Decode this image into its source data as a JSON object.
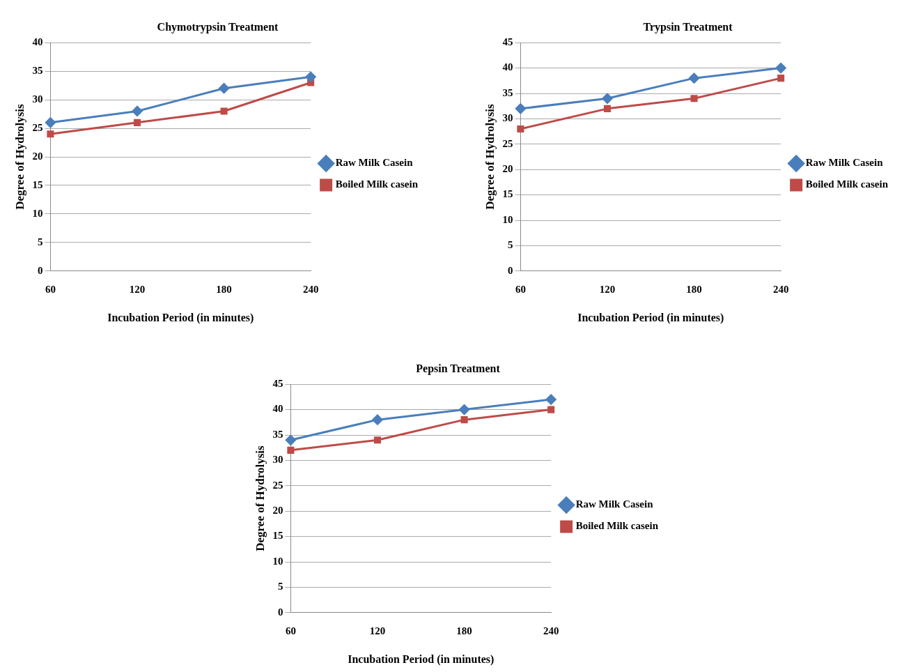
{
  "chart_data": [
    {
      "type": "line",
      "title": "Chymotrypsin Treatment",
      "xlabel": "Incubation Period (in minutes)",
      "ylabel": "Degree of Hydrolysis",
      "categories": [
        "60",
        "120",
        "180",
        "240"
      ],
      "series": [
        {
          "name": "Raw Milk Casein",
          "color": "#4a7ebb",
          "marker": "diamond",
          "values": [
            26,
            28,
            32,
            34
          ]
        },
        {
          "name": "Boiled Milk casein",
          "color": "#be4b48",
          "marker": "square",
          "values": [
            24,
            26,
            28,
            33
          ]
        }
      ],
      "ylim": [
        0,
        40
      ],
      "yticks": [
        0,
        5,
        10,
        15,
        20,
        25,
        30,
        35,
        40
      ],
      "grid": "y",
      "legend": "right",
      "line_style": "solid"
    },
    {
      "type": "line",
      "title": "Trypsin Treatment",
      "xlabel": "Incubation Period (in minutes)",
      "ylabel": "Degree of Hydrolysis",
      "categories": [
        "60",
        "120",
        "180",
        "240"
      ],
      "series": [
        {
          "name": "Raw Milk Casein",
          "color": "#4a7ebb",
          "marker": "diamond",
          "values": [
            32,
            34,
            38,
            40
          ]
        },
        {
          "name": "Boiled Milk casein",
          "color": "#be4b48",
          "marker": "square",
          "values": [
            28,
            32,
            34,
            38
          ]
        }
      ],
      "ylim": [
        0,
        45
      ],
      "yticks": [
        0,
        5,
        10,
        15,
        20,
        25,
        30,
        35,
        40,
        45
      ],
      "grid": "y",
      "legend": "right",
      "line_style": "solid"
    },
    {
      "type": "line",
      "title": "Pepsin Treatment",
      "xlabel": "Incubation Period (in minutes)",
      "ylabel": "Degree of Hydrolysis",
      "categories": [
        "60",
        "120",
        "180",
        "240"
      ],
      "series": [
        {
          "name": "Raw Milk Casein",
          "color": "#4a7ebb",
          "marker": "diamond",
          "values": [
            34,
            38,
            40,
            42
          ]
        },
        {
          "name": "Boiled Milk casein",
          "color": "#be4b48",
          "marker": "square",
          "values": [
            32,
            34,
            38,
            40
          ]
        }
      ],
      "ylim": [
        0,
        45
      ],
      "yticks": [
        0,
        5,
        10,
        15,
        20,
        25,
        30,
        35,
        40,
        45
      ],
      "grid": "y",
      "legend": "right",
      "line_style": "solid"
    }
  ]
}
